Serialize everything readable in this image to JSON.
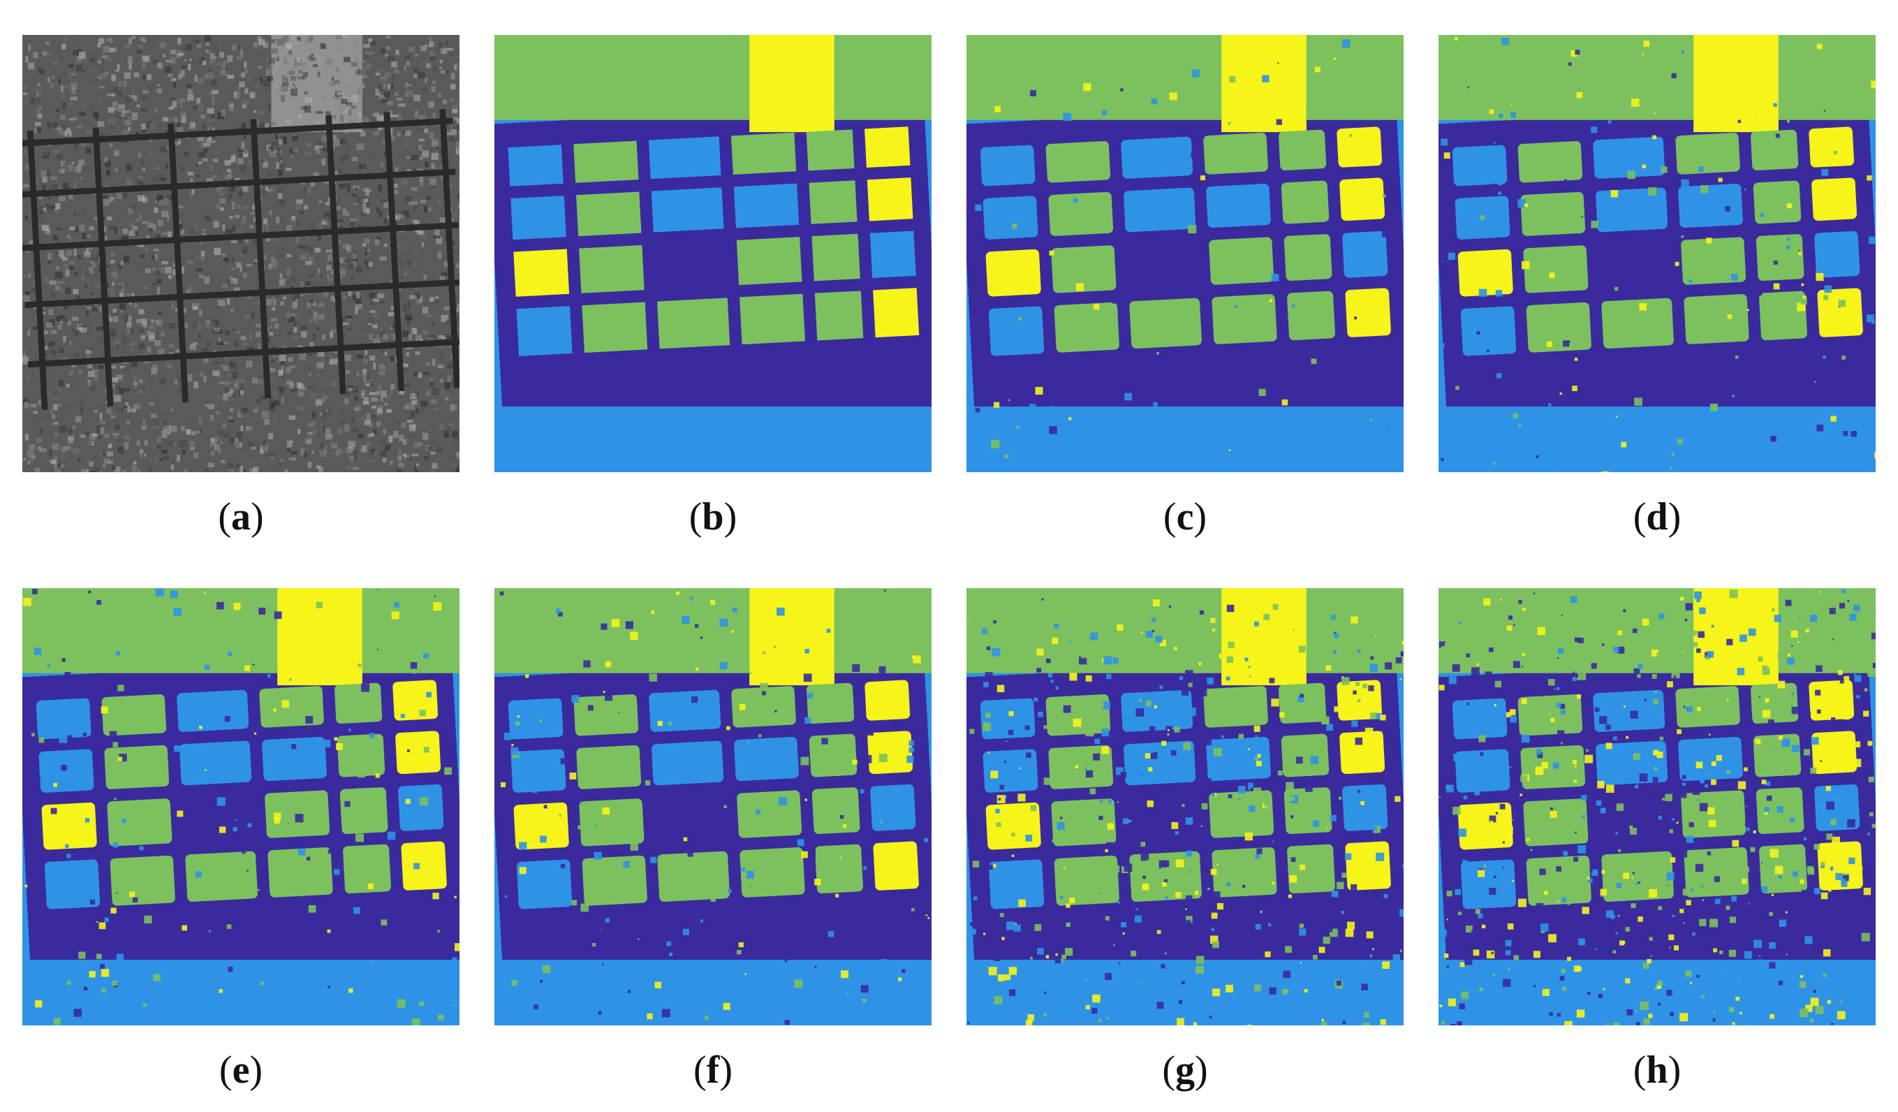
{
  "colors": {
    "navy": "#3a2a9e",
    "blue": "#2e93e6",
    "green": "#7cc15d",
    "yellow": "#f6f419",
    "sar_dark": "#2a2a2a",
    "sar_mid": "#5a5a5a",
    "sar_light": "#a8a8a8"
  },
  "panels": [
    {
      "label": "a",
      "kind": "sar",
      "icon": "sar-grayscale-image"
    },
    {
      "label": "b",
      "kind": "groundtruth",
      "icon": "classification-map",
      "noise": 0
    },
    {
      "label": "c",
      "kind": "classmap",
      "icon": "classification-map",
      "noise": 0.05
    },
    {
      "label": "d",
      "kind": "classmap",
      "icon": "classification-map",
      "noise": 0.12
    },
    {
      "label": "e",
      "kind": "classmap",
      "icon": "classification-map",
      "noise": 0.14
    },
    {
      "label": "f",
      "kind": "classmap",
      "icon": "classification-map",
      "noise": 0.14
    },
    {
      "label": "g",
      "kind": "classmap",
      "icon": "classification-map",
      "noise": 0.35
    },
    {
      "label": "h",
      "kind": "classmap",
      "icon": "classification-map",
      "noise": 0.45
    }
  ]
}
